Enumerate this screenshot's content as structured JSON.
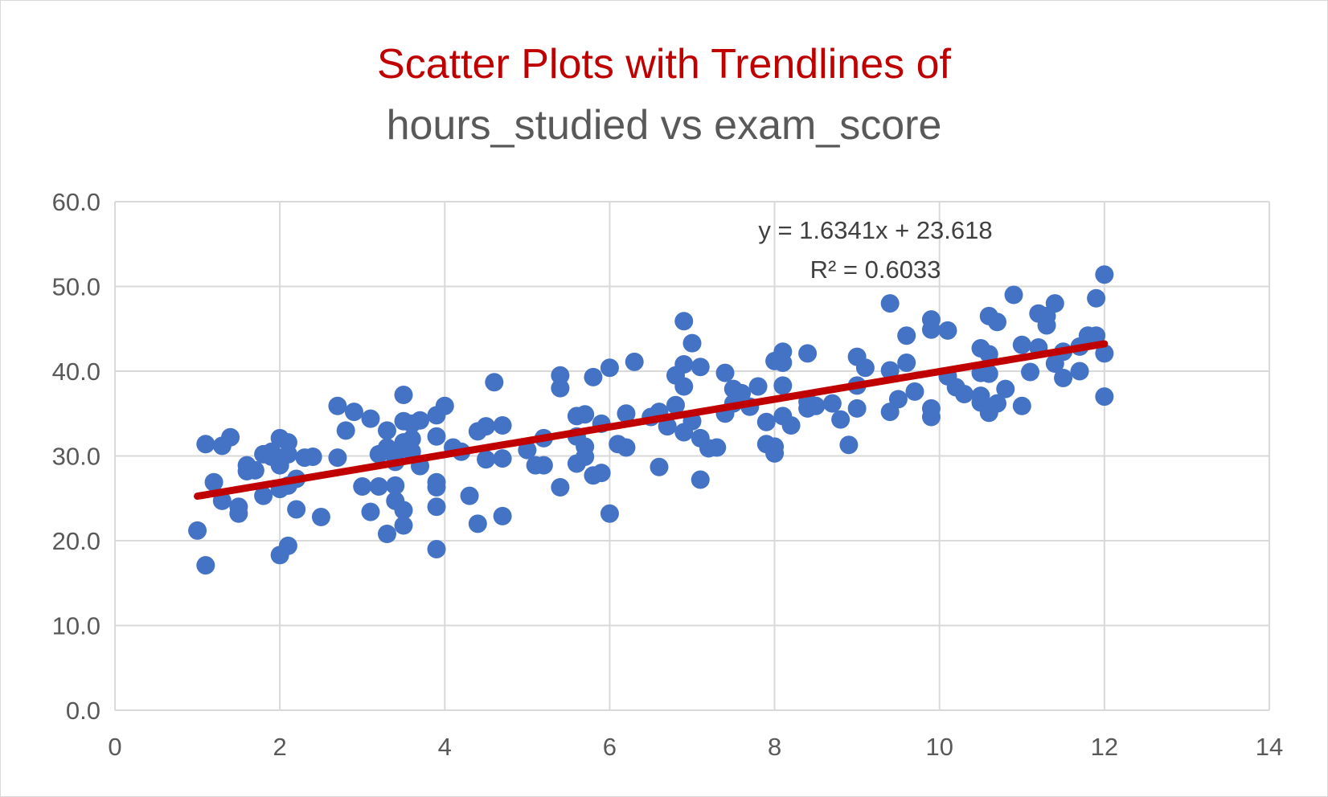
{
  "chart_data": {
    "type": "scatter",
    "title": "Scatter Plots with Trendlines of",
    "subtitle": "hours_studied vs exam_score",
    "xlabel": "",
    "ylabel": "",
    "xlim": [
      0,
      14
    ],
    "ylim": [
      0,
      60
    ],
    "x_ticks": [
      0,
      2,
      4,
      6,
      8,
      10,
      12,
      14
    ],
    "y_ticks": [
      "0.0",
      "10.0",
      "20.0",
      "30.0",
      "40.0",
      "50.0",
      "60.0"
    ],
    "grid": true,
    "legend": "none",
    "colors": {
      "points": "#4472c4",
      "trendline": "#c00000",
      "title_line1": "#c00000",
      "title_line2": "#595959",
      "grid": "#d9d9d9"
    },
    "trendline": {
      "slope": 1.6341,
      "intercept": 23.618,
      "x_range": [
        1,
        12
      ],
      "equation_label": "y = 1.6341x + 23.618",
      "r2_label": "R² = 0.6033"
    },
    "series": [
      {
        "points": [
          [
            1.0,
            21.2
          ],
          [
            1.1,
            31.4
          ],
          [
            1.1,
            17.1
          ],
          [
            1.2,
            26.9
          ],
          [
            1.3,
            24.7
          ],
          [
            1.3,
            31.2
          ],
          [
            1.4,
            32.2
          ],
          [
            1.5,
            24.0
          ],
          [
            1.5,
            23.2
          ],
          [
            1.6,
            28.9
          ],
          [
            1.6,
            28.2
          ],
          [
            1.7,
            28.3
          ],
          [
            1.8,
            30.2
          ],
          [
            1.8,
            25.3
          ],
          [
            1.9,
            30.5
          ],
          [
            1.9,
            29.9
          ],
          [
            2.0,
            32.1
          ],
          [
            2.0,
            28.9
          ],
          [
            2.0,
            26.1
          ],
          [
            2.0,
            18.3
          ],
          [
            2.1,
            31.6
          ],
          [
            2.1,
            30.2
          ],
          [
            2.1,
            26.5
          ],
          [
            2.1,
            19.4
          ],
          [
            2.2,
            27.3
          ],
          [
            2.2,
            23.7
          ],
          [
            2.3,
            29.8
          ],
          [
            2.4,
            29.9
          ],
          [
            2.5,
            22.8
          ],
          [
            2.7,
            35.9
          ],
          [
            2.7,
            29.8
          ],
          [
            2.8,
            33.0
          ],
          [
            2.9,
            35.2
          ],
          [
            3.0,
            26.4
          ],
          [
            3.1,
            34.4
          ],
          [
            3.1,
            23.4
          ],
          [
            3.2,
            30.2
          ],
          [
            3.2,
            26.4
          ],
          [
            3.3,
            33.0
          ],
          [
            3.3,
            31.0
          ],
          [
            3.3,
            20.8
          ],
          [
            3.4,
            30.0
          ],
          [
            3.4,
            29.3
          ],
          [
            3.4,
            26.5
          ],
          [
            3.4,
            24.7
          ],
          [
            3.5,
            37.2
          ],
          [
            3.5,
            34.1
          ],
          [
            3.5,
            31.6
          ],
          [
            3.5,
            23.6
          ],
          [
            3.5,
            21.8
          ],
          [
            3.6,
            33.8
          ],
          [
            3.6,
            32.0
          ],
          [
            3.6,
            30.5
          ],
          [
            3.7,
            34.2
          ],
          [
            3.7,
            28.8
          ],
          [
            3.9,
            34.8
          ],
          [
            3.9,
            32.3
          ],
          [
            3.9,
            26.9
          ],
          [
            3.9,
            26.3
          ],
          [
            3.9,
            24.0
          ],
          [
            3.9,
            19.0
          ],
          [
            4.0,
            35.9
          ],
          [
            4.1,
            31.0
          ],
          [
            4.2,
            30.5
          ],
          [
            4.3,
            25.3
          ],
          [
            4.4,
            32.9
          ],
          [
            4.4,
            22.0
          ],
          [
            4.5,
            33.5
          ],
          [
            4.5,
            29.6
          ],
          [
            4.6,
            38.7
          ],
          [
            4.7,
            33.6
          ],
          [
            4.7,
            29.7
          ],
          [
            4.7,
            22.9
          ],
          [
            5.0,
            30.7
          ],
          [
            5.1,
            28.9
          ],
          [
            5.2,
            32.1
          ],
          [
            5.2,
            28.9
          ],
          [
            5.4,
            39.5
          ],
          [
            5.4,
            38.0
          ],
          [
            5.4,
            26.3
          ],
          [
            5.6,
            34.7
          ],
          [
            5.6,
            32.3
          ],
          [
            5.6,
            29.1
          ],
          [
            5.7,
            34.9
          ],
          [
            5.7,
            31.1
          ],
          [
            5.7,
            29.9
          ],
          [
            5.8,
            39.3
          ],
          [
            5.8,
            27.7
          ],
          [
            5.9,
            33.8
          ],
          [
            5.9,
            28.0
          ],
          [
            6.0,
            40.4
          ],
          [
            6.0,
            23.2
          ],
          [
            6.1,
            31.4
          ],
          [
            6.2,
            35.0
          ],
          [
            6.2,
            31.0
          ],
          [
            6.3,
            41.1
          ],
          [
            6.5,
            34.6
          ],
          [
            6.6,
            35.2
          ],
          [
            6.6,
            28.7
          ],
          [
            6.7,
            33.5
          ],
          [
            6.8,
            39.5
          ],
          [
            6.8,
            36.0
          ],
          [
            6.9,
            45.9
          ],
          [
            6.9,
            40.8
          ],
          [
            6.9,
            38.2
          ],
          [
            6.9,
            32.8
          ],
          [
            7.0,
            43.3
          ],
          [
            7.0,
            34.1
          ],
          [
            7.1,
            40.5
          ],
          [
            7.1,
            32.1
          ],
          [
            7.1,
            27.2
          ],
          [
            7.2,
            30.9
          ],
          [
            7.3,
            31.0
          ],
          [
            7.4,
            39.8
          ],
          [
            7.4,
            35.0
          ],
          [
            7.5,
            37.9
          ],
          [
            7.5,
            36.2
          ],
          [
            7.6,
            37.4
          ],
          [
            7.7,
            35.8
          ],
          [
            7.8,
            38.2
          ],
          [
            7.9,
            34.0
          ],
          [
            7.9,
            31.4
          ],
          [
            8.0,
            41.2
          ],
          [
            8.0,
            31.1
          ],
          [
            8.0,
            30.3
          ],
          [
            8.1,
            42.3
          ],
          [
            8.1,
            41.0
          ],
          [
            8.1,
            38.3
          ],
          [
            8.1,
            34.7
          ],
          [
            8.2,
            33.6
          ],
          [
            8.4,
            42.1
          ],
          [
            8.4,
            36.4
          ],
          [
            8.4,
            35.6
          ],
          [
            8.5,
            35.9
          ],
          [
            8.7,
            36.2
          ],
          [
            8.8,
            34.3
          ],
          [
            8.9,
            31.3
          ],
          [
            9.0,
            41.7
          ],
          [
            9.0,
            38.3
          ],
          [
            9.0,
            35.6
          ],
          [
            9.1,
            40.4
          ],
          [
            9.4,
            48.0
          ],
          [
            9.4,
            40.1
          ],
          [
            9.4,
            35.2
          ],
          [
            9.5,
            36.7
          ],
          [
            9.6,
            44.2
          ],
          [
            9.6,
            41.0
          ],
          [
            9.7,
            37.6
          ],
          [
            9.9,
            46.1
          ],
          [
            9.9,
            44.9
          ],
          [
            9.9,
            35.6
          ],
          [
            9.9,
            34.6
          ],
          [
            10.1,
            44.8
          ],
          [
            10.1,
            39.4
          ],
          [
            10.2,
            38.1
          ],
          [
            10.3,
            37.3
          ],
          [
            10.5,
            42.7
          ],
          [
            10.5,
            39.8
          ],
          [
            10.5,
            37.1
          ],
          [
            10.5,
            36.3
          ],
          [
            10.6,
            46.5
          ],
          [
            10.6,
            42.0
          ],
          [
            10.6,
            39.7
          ],
          [
            10.6,
            35.1
          ],
          [
            10.7,
            45.8
          ],
          [
            10.7,
            36.2
          ],
          [
            10.8,
            37.9
          ],
          [
            10.9,
            49.0
          ],
          [
            11.0,
            43.1
          ],
          [
            11.0,
            35.9
          ],
          [
            11.1,
            39.9
          ],
          [
            11.2,
            46.8
          ],
          [
            11.2,
            42.8
          ],
          [
            11.3,
            46.5
          ],
          [
            11.3,
            45.4
          ],
          [
            11.4,
            48.0
          ],
          [
            11.4,
            40.9
          ],
          [
            11.5,
            42.3
          ],
          [
            11.5,
            39.2
          ],
          [
            11.7,
            42.9
          ],
          [
            11.7,
            40.0
          ],
          [
            11.8,
            44.2
          ],
          [
            11.9,
            48.6
          ],
          [
            11.9,
            44.2
          ],
          [
            12.0,
            51.4
          ],
          [
            12.0,
            42.1
          ],
          [
            12.0,
            37.0
          ]
        ]
      }
    ]
  }
}
